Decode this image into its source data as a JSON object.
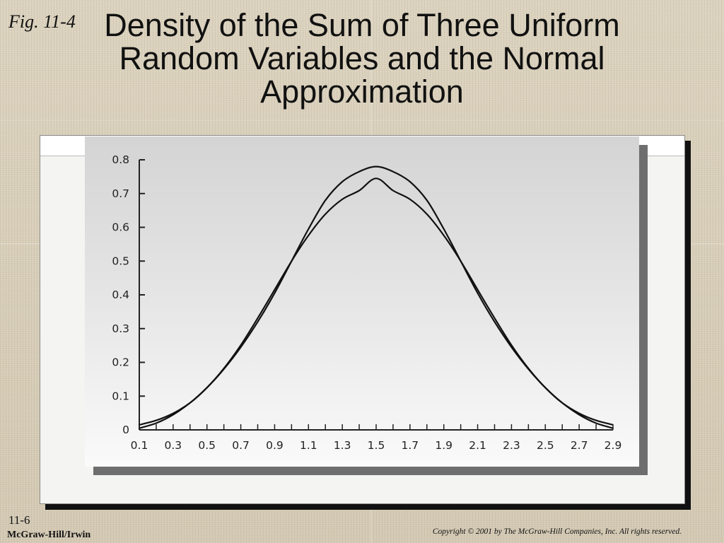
{
  "slide": {
    "fig_label": "Fig. 11-4",
    "title": "Density of the Sum of Three Uniform Random Variables and the Normal Approximation",
    "page_number": "11-6",
    "publisher": "McGraw-Hill/Irwin",
    "copyright": "Copyright © 2001 by The McGraw-Hill Companies, Inc.  All rights reserved."
  },
  "chart_data": {
    "type": "line",
    "title": "",
    "xlabel": "",
    "ylabel": "",
    "xlim": [
      0.1,
      2.9
    ],
    "ylim": [
      0,
      0.8
    ],
    "x_ticks": [
      "0.1",
      "0.3",
      "0.5",
      "0.7",
      "0.9",
      "1.1",
      "1.3",
      "1.5",
      "1.7",
      "1.9",
      "2.1",
      "2.3",
      "2.5",
      "2.7",
      "2.9"
    ],
    "y_ticks": [
      "0",
      "0.1",
      "0.2",
      "0.3",
      "0.4",
      "0.5",
      "0.6",
      "0.7",
      "0.8"
    ],
    "grid": false,
    "series": [
      {
        "x": [
          0.1,
          0.2,
          0.3,
          0.4,
          0.5,
          0.6,
          0.7,
          0.8,
          0.9,
          1.0,
          1.1,
          1.2,
          1.3,
          1.4,
          1.5,
          1.6,
          1.7,
          1.8,
          1.9,
          2.0,
          2.1,
          2.2,
          2.3,
          2.4,
          2.5,
          2.6,
          2.7,
          2.8,
          2.9
        ],
        "values": [
          0.005,
          0.02,
          0.045,
          0.08,
          0.125,
          0.18,
          0.245,
          0.32,
          0.405,
          0.5,
          0.595,
          0.68,
          0.735,
          0.765,
          0.78,
          0.765,
          0.735,
          0.68,
          0.595,
          0.5,
          0.405,
          0.32,
          0.245,
          0.18,
          0.125,
          0.08,
          0.045,
          0.02,
          0.005
        ]
      },
      {
        "x": [
          0.1,
          0.2,
          0.3,
          0.4,
          0.5,
          0.6,
          0.7,
          0.8,
          0.9,
          1.0,
          1.1,
          1.2,
          1.3,
          1.4,
          1.5,
          1.6,
          1.7,
          1.8,
          1.9,
          2.0,
          2.1,
          2.2,
          2.3,
          2.4,
          2.5,
          2.6,
          2.7,
          2.8,
          2.9
        ],
        "values": [
          0.015,
          0.028,
          0.049,
          0.08,
          0.125,
          0.182,
          0.251,
          0.331,
          0.415,
          0.5,
          0.576,
          0.639,
          0.683,
          0.709,
          0.745,
          0.709,
          0.683,
          0.639,
          0.576,
          0.5,
          0.415,
          0.331,
          0.251,
          0.182,
          0.125,
          0.08,
          0.049,
          0.028,
          0.015
        ]
      }
    ]
  },
  "colors": {
    "background": "#d6cdb8",
    "panel_top": "#d4d4d4",
    "panel_bottom": "#fafafa",
    "curve": "#111111"
  }
}
